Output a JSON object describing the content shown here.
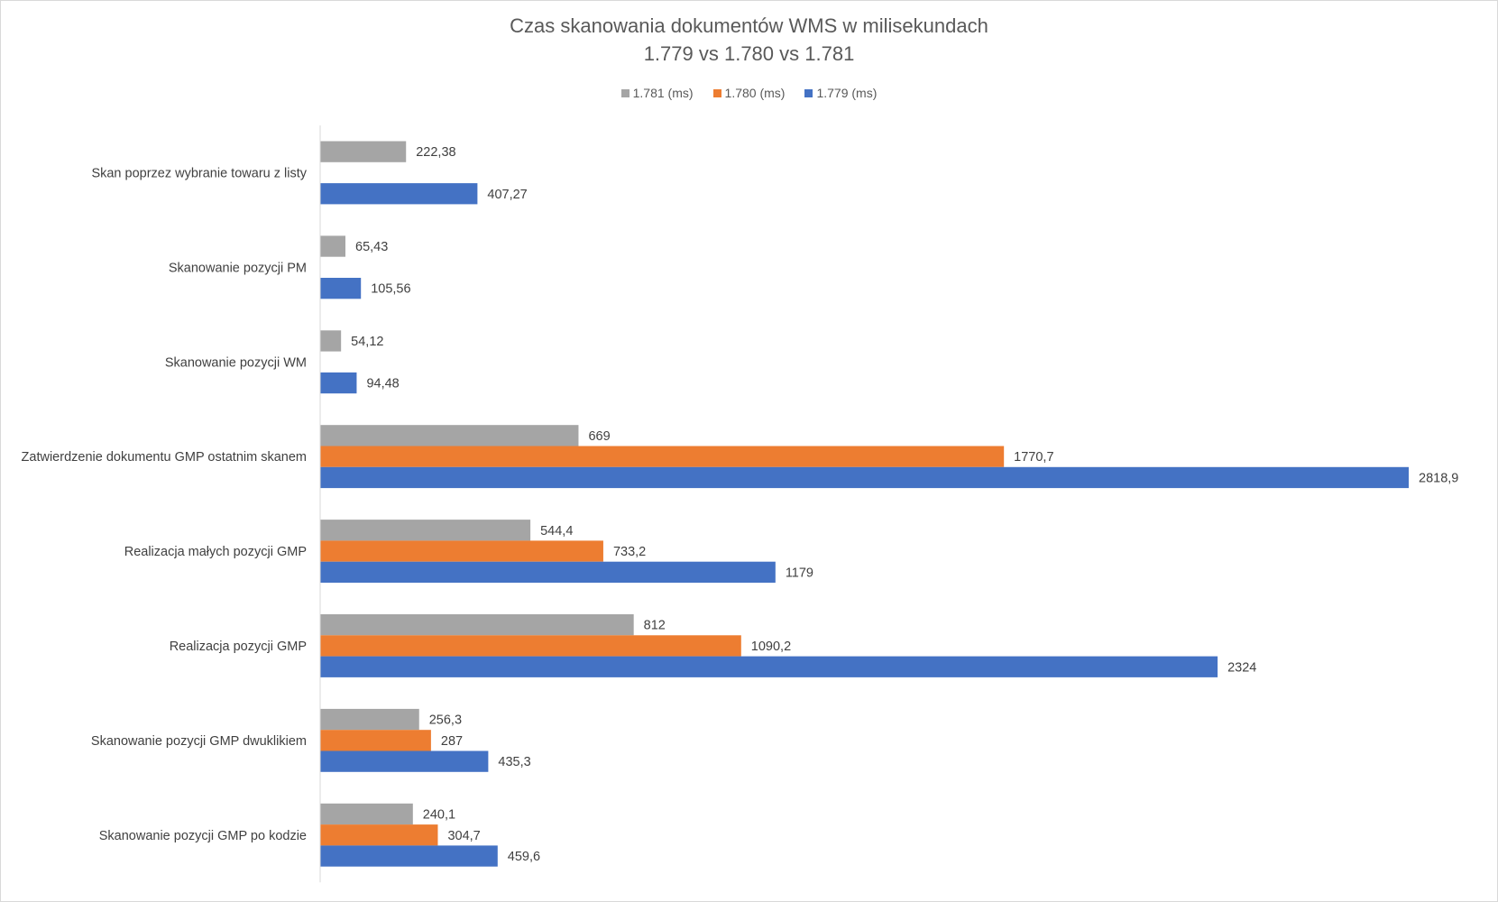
{
  "chart_data": {
    "type": "bar",
    "orientation": "horizontal",
    "title": "Czas skanowania dokumentów WMS w milisekundach",
    "subtitle": "1.779 vs 1.780 vs 1.781",
    "xlabel": "",
    "ylabel": "",
    "xlim": [
      0,
      2900
    ],
    "grid": false,
    "legend_position": "top",
    "categories": [
      "Skan poprzez wybranie towaru z listy",
      "Skanowanie pozycji PM",
      "Skanowanie pozycji WM",
      "Zatwierdzenie dokumentu GMP ostatnim skanem",
      "Realizacja małych pozycji GMP",
      "Realizacja pozycji GMP",
      "Skanowanie pozycji GMP dwuklikiem",
      "Skanowanie pozycji GMP po kodzie"
    ],
    "series": [
      {
        "name": "1.781 (ms)",
        "color": "#a5a5a5",
        "values": [
          222.38,
          65.43,
          54.12,
          669,
          544.4,
          812,
          256.3,
          240.1
        ],
        "labels": [
          "222,38",
          "65,43",
          "54,12",
          "669",
          "544,4",
          "812",
          "256,3",
          "240,1"
        ]
      },
      {
        "name": "1.780 (ms)",
        "color": "#ed7d31",
        "values": [
          null,
          null,
          null,
          1770.7,
          733.2,
          1090.2,
          287,
          304.7
        ],
        "labels": [
          null,
          null,
          null,
          "1770,7",
          "733,2",
          "1090,2",
          "287",
          "304,7"
        ]
      },
      {
        "name": "1.779 (ms)",
        "color": "#4472c4",
        "values": [
          407.27,
          105.56,
          94.48,
          2818.9,
          1179,
          2324,
          435.3,
          459.6
        ],
        "labels": [
          "407,27",
          "105,56",
          "94,48",
          "2818,9",
          "1179",
          "2324",
          "435,3",
          "459,6"
        ]
      }
    ]
  }
}
